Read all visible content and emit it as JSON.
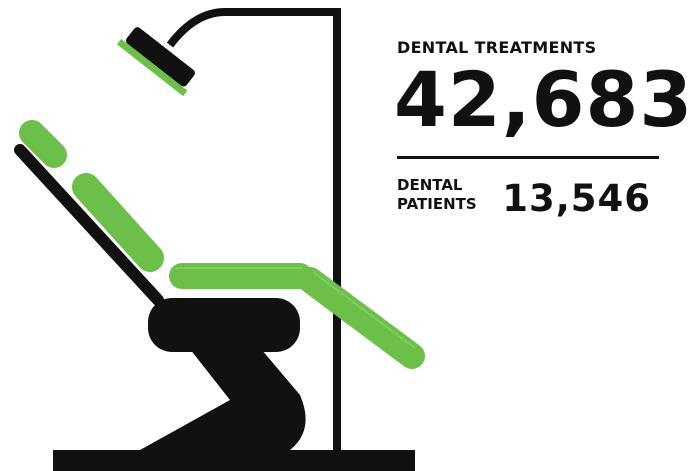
{
  "stats": [
    {
      "label": "DENTAL TREATMENTS",
      "value": "42,683"
    },
    {
      "label": "DENTAL PATIENTS",
      "value": "13,546"
    }
  ]
}
